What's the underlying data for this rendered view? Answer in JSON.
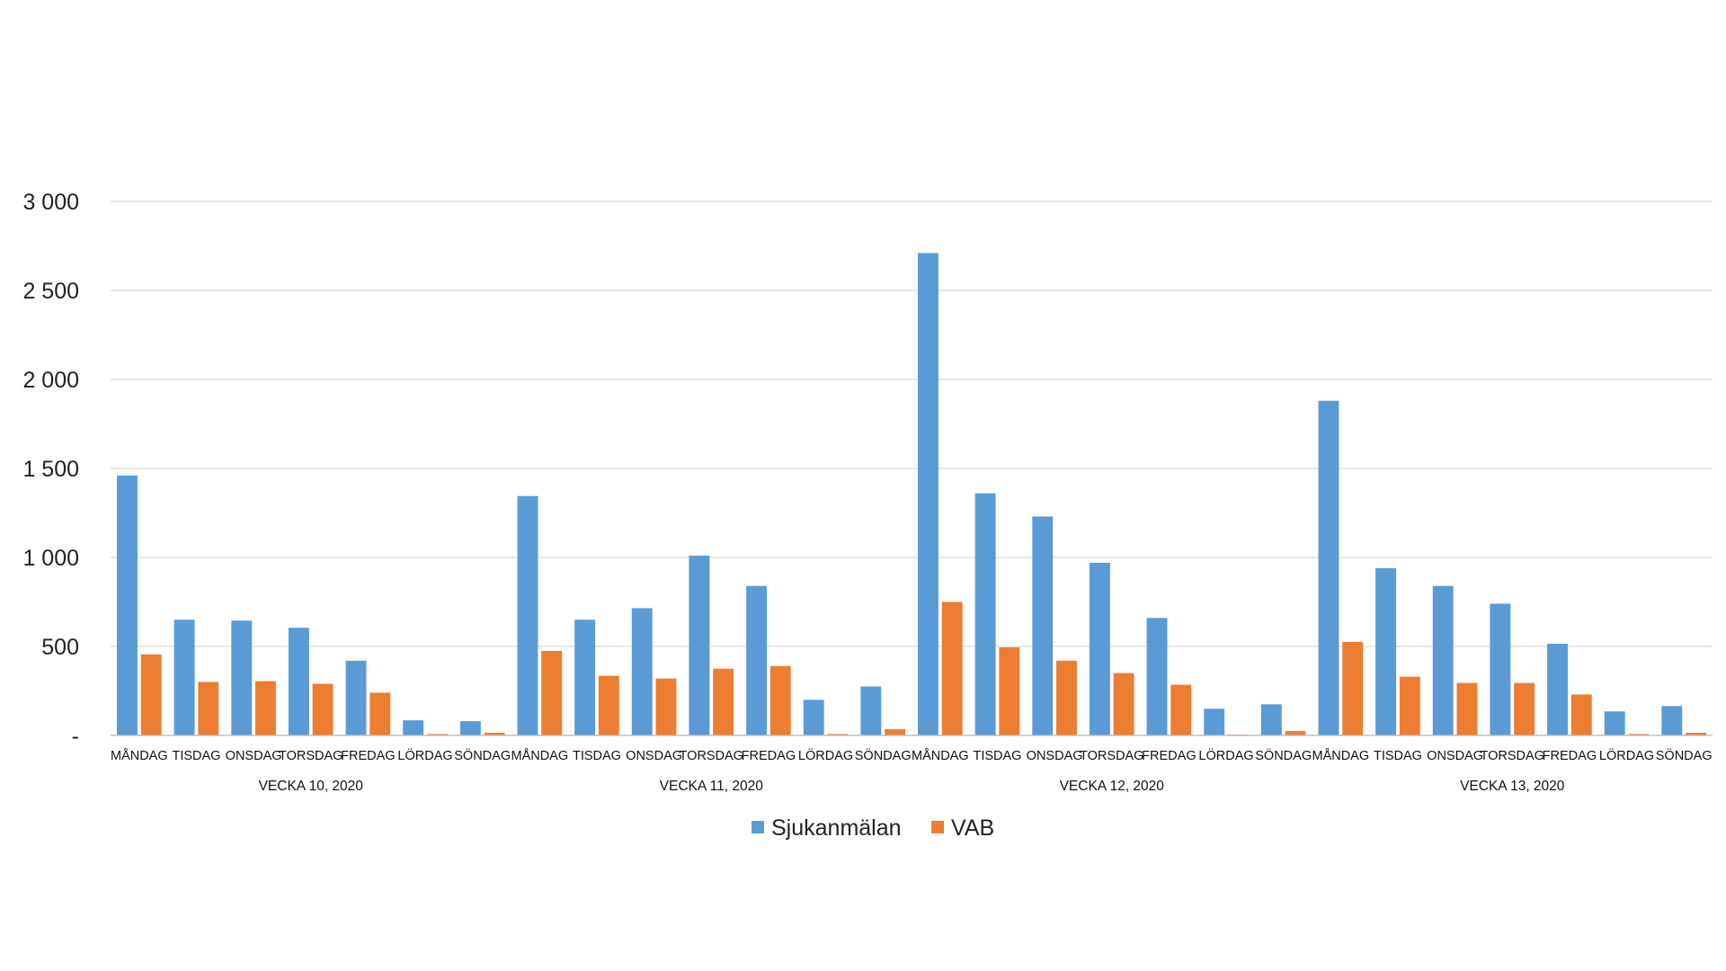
{
  "chart_data": {
    "type": "bar",
    "title": "",
    "xlabel": "",
    "ylabel": "",
    "ylim": [
      0,
      3000
    ],
    "yticks": [
      0,
      500,
      1000,
      1500,
      2000,
      2500,
      3000
    ],
    "ytick_labels": [
      "-",
      "500",
      "1 000",
      "1 500",
      "2 000",
      "2 500",
      "3 000"
    ],
    "grid": true,
    "legend_position": "bottom",
    "groups": [
      "VECKA 10, 2020",
      "VECKA 11, 2020",
      "VECKA 12, 2020",
      "VECKA 13, 2020"
    ],
    "days": [
      "MÅNDAG",
      "TISDAG",
      "ONSDAG",
      "TORSDAG",
      "FREDAG",
      "LÖRDAG",
      "SÖNDAG"
    ],
    "series": [
      {
        "name": "Sjukanmälan",
        "color": "#5B9BD5",
        "values": [
          1460,
          650,
          645,
          605,
          420,
          85,
          80,
          1345,
          650,
          715,
          1010,
          840,
          200,
          275,
          2710,
          1360,
          1230,
          970,
          660,
          150,
          175,
          1880,
          940,
          840,
          740,
          515,
          135,
          165
        ]
      },
      {
        "name": "VAB",
        "color": "#ED7D31",
        "values": [
          455,
          300,
          305,
          290,
          240,
          8,
          15,
          475,
          335,
          320,
          375,
          390,
          8,
          35,
          750,
          495,
          420,
          350,
          285,
          5,
          25,
          525,
          330,
          295,
          295,
          230,
          8,
          15
        ]
      }
    ]
  }
}
